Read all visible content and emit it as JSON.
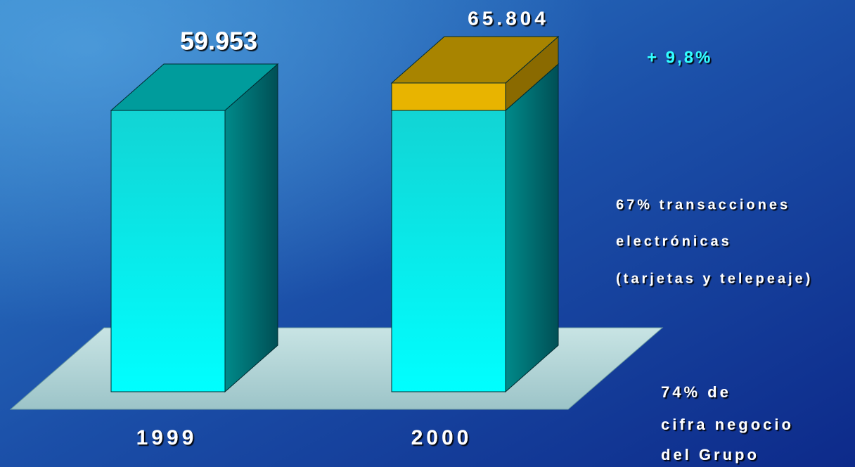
{
  "chart_data": {
    "type": "bar3d",
    "categories": [
      "1999",
      "2000"
    ],
    "values": [
      59953,
      65804
    ],
    "value_labels": [
      "59.953",
      "65.804"
    ],
    "color": "#00f0f0",
    "increase_color": "#e8b400",
    "annotations": {
      "growth": "+ 9,8%",
      "electronic": [
        "67% transacciones",
        "electrónicas",
        "(tarjetas y telepeaje)"
      ],
      "share": [
        "74% de",
        "cifra negocio",
        "del Grupo"
      ]
    }
  }
}
